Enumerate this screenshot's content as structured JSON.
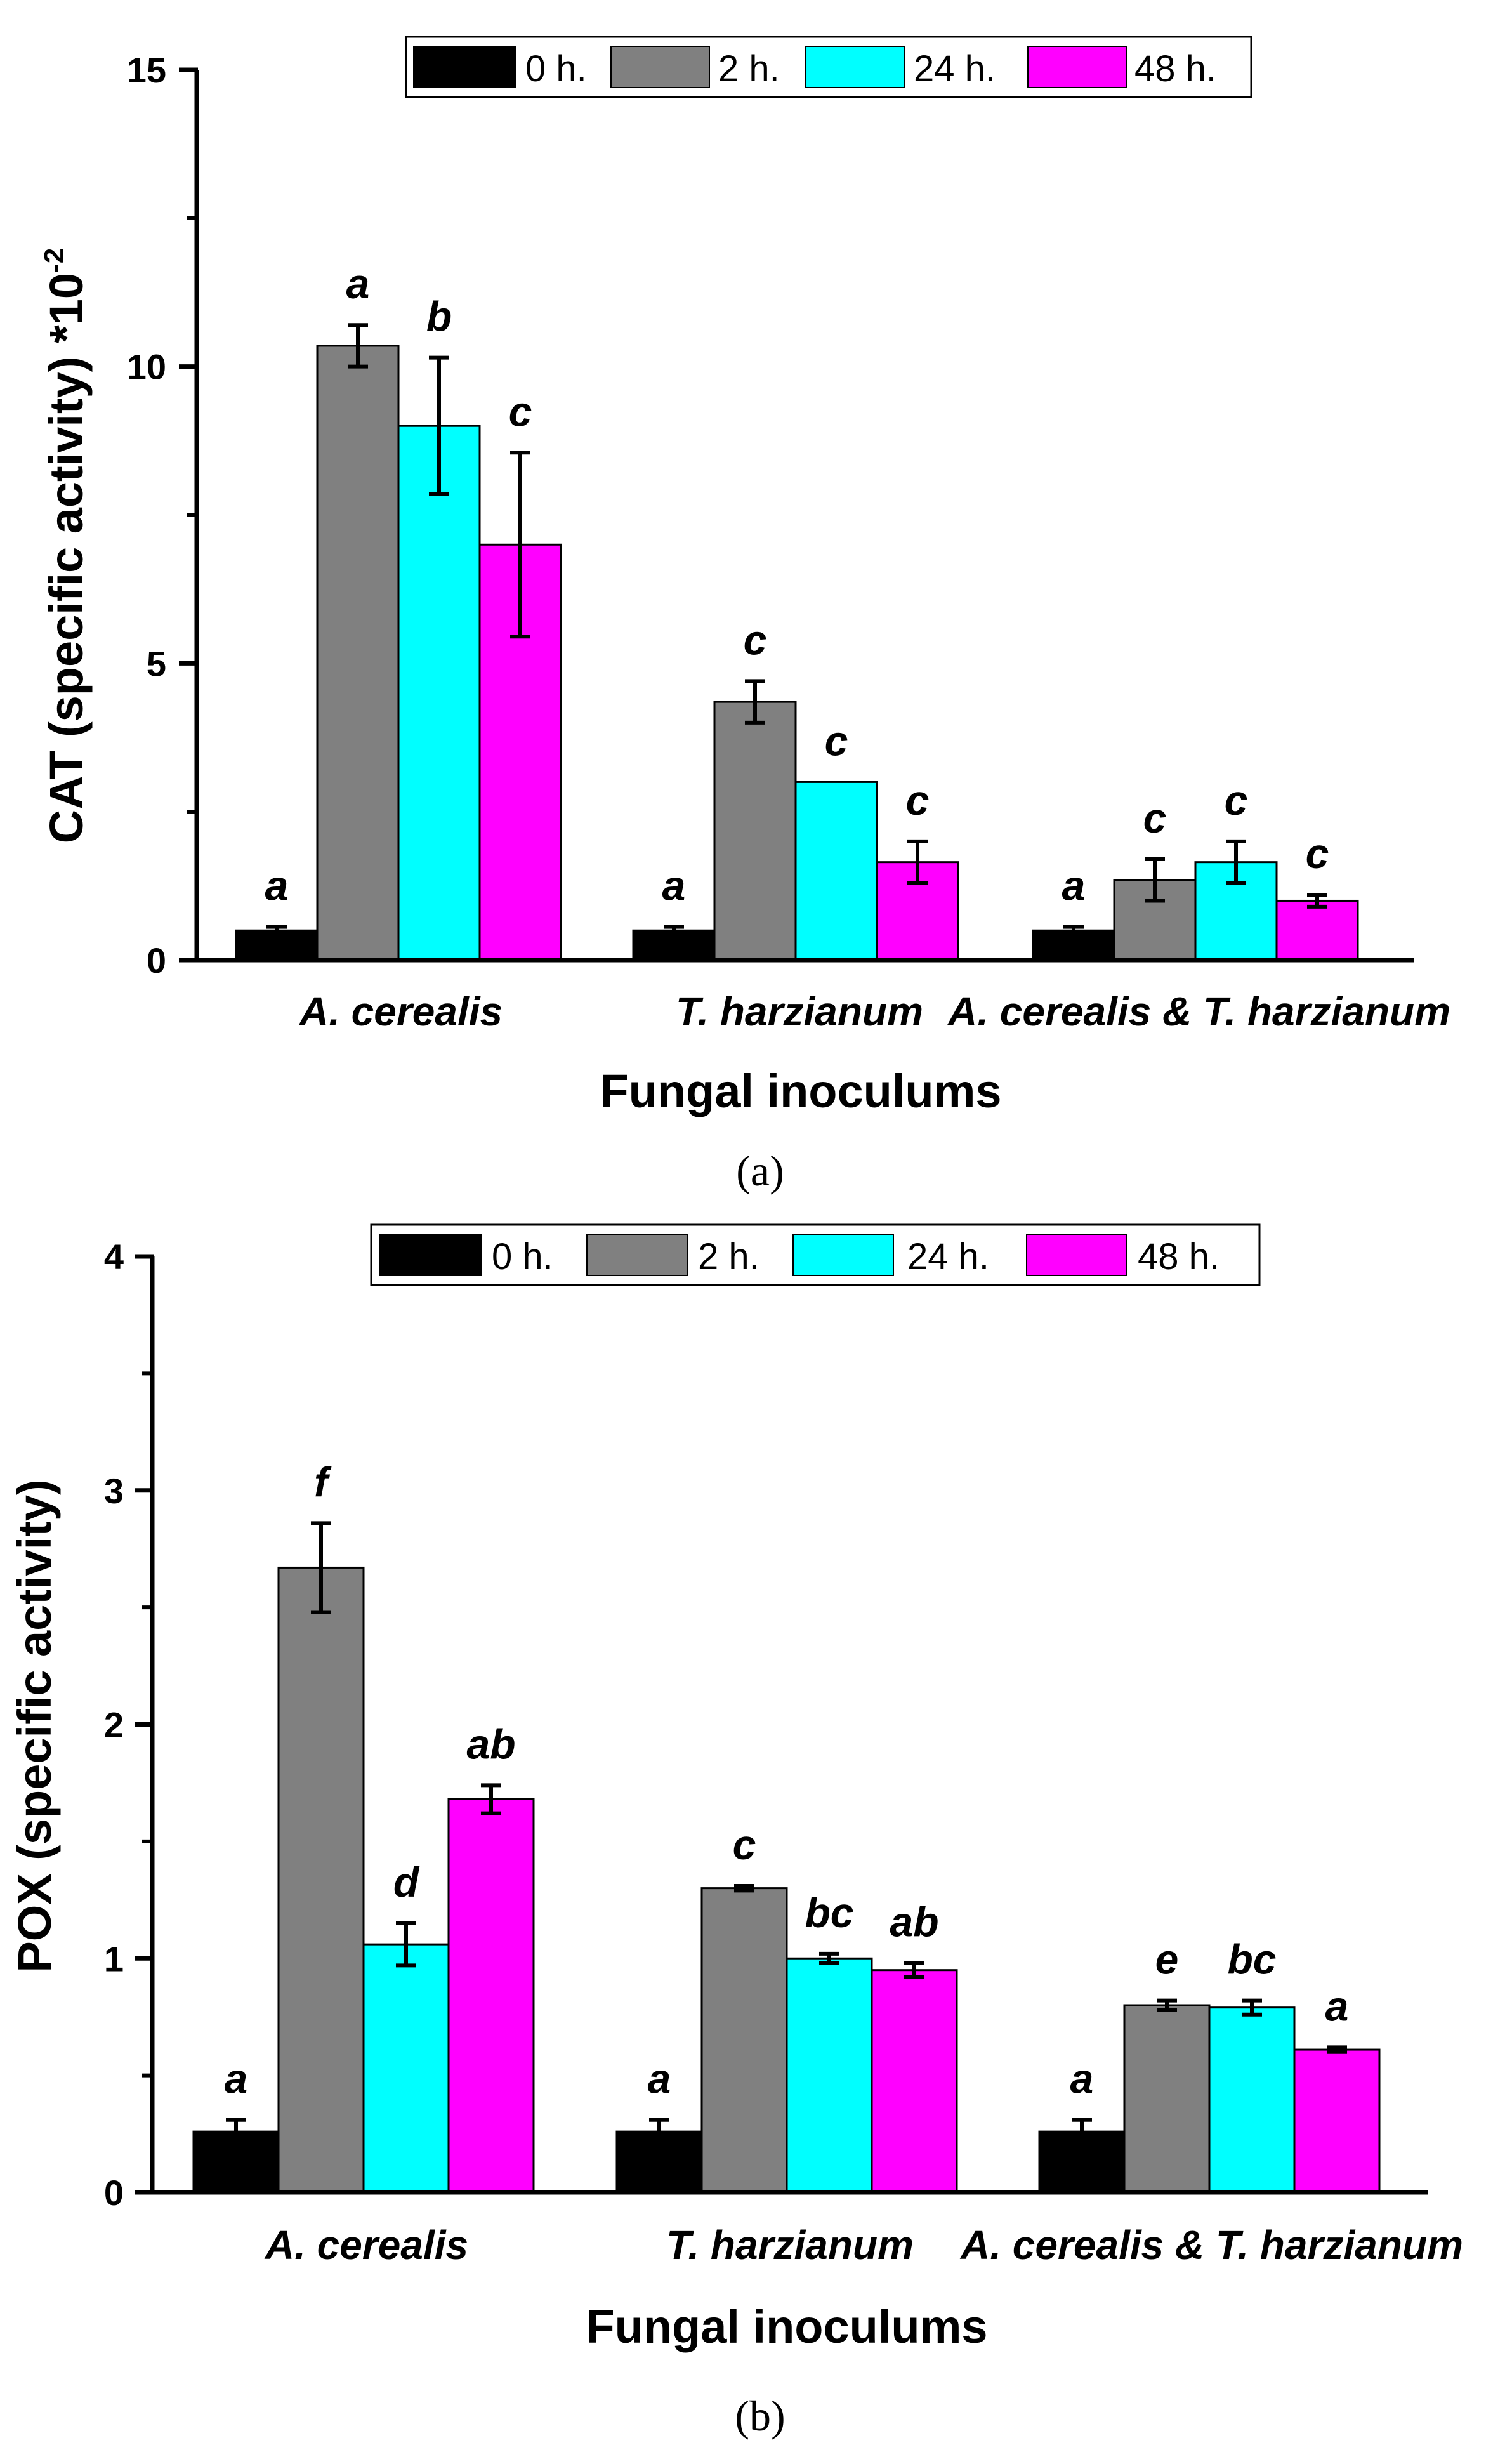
{
  "chart_data": [
    {
      "type": "bar",
      "panel_caption": "(a)",
      "ylabel_main": "CAT (specific activity) *10",
      "ylabel_superscript": "-2",
      "xlabel": "Fungal inoculums",
      "categories": [
        "A. cerealis",
        "T. harzianum",
        "A. cerealis & T. harzianum"
      ],
      "ylim": [
        0,
        15
      ],
      "yticks": [
        0,
        5,
        10,
        15
      ],
      "legend_position": "top-center",
      "grid": false,
      "series": [
        {
          "name": "0 h.",
          "color": "#000000",
          "values": [
            0.5,
            0.5,
            0.5
          ],
          "errors": [
            0.06,
            0.06,
            0.06
          ],
          "letters": [
            "a",
            "a",
            "a"
          ]
        },
        {
          "name": "2 h.",
          "color": "#808080",
          "values": [
            10.35,
            4.35,
            1.35
          ],
          "errors": [
            0.35,
            0.35,
            0.35
          ],
          "letters": [
            "a",
            "c",
            "c"
          ]
        },
        {
          "name": "24 h.",
          "color": "#00FFFF",
          "values": [
            9.0,
            3.0,
            1.65
          ],
          "errors": [
            1.15,
            0.0,
            0.35
          ],
          "letters": [
            "b",
            "c",
            "c"
          ]
        },
        {
          "name": "48 h.",
          "color": "#FF00FF",
          "values": [
            7.0,
            1.65,
            1.0
          ],
          "errors": [
            1.55,
            0.35,
            0.1
          ],
          "letters": [
            "c",
            "c",
            "c"
          ]
        }
      ]
    },
    {
      "type": "bar",
      "panel_caption": "(b)",
      "ylabel_main": "POX (specific activity)",
      "ylabel_superscript": "",
      "xlabel": "Fungal inoculums",
      "categories": [
        "A. cerealis",
        "T. harzianum",
        "A. cerealis & T. harzianum"
      ],
      "ylim": [
        0,
        4
      ],
      "yticks": [
        0,
        1,
        2,
        3,
        4
      ],
      "legend_position": "top-center",
      "grid": false,
      "series": [
        {
          "name": "0 h.",
          "color": "#000000",
          "values": [
            0.26,
            0.26,
            0.26
          ],
          "errors": [
            0.05,
            0.05,
            0.05
          ],
          "letters": [
            "a",
            "a",
            "a"
          ]
        },
        {
          "name": "2 h.",
          "color": "#808080",
          "values": [
            2.67,
            1.3,
            0.8
          ],
          "errors": [
            0.19,
            0.01,
            0.02
          ],
          "letters": [
            "f",
            "c",
            "e"
          ]
        },
        {
          "name": "24 h.",
          "color": "#00FFFF",
          "values": [
            1.06,
            1.0,
            0.79
          ],
          "errors": [
            0.09,
            0.02,
            0.03
          ],
          "letters": [
            "d",
            "bc",
            "bc"
          ]
        },
        {
          "name": "48 h.",
          "color": "#FF00FF",
          "values": [
            1.68,
            0.95,
            0.61
          ],
          "errors": [
            0.06,
            0.03,
            0.01
          ],
          "letters": [
            "ab",
            "ab",
            "a"
          ]
        }
      ]
    }
  ]
}
